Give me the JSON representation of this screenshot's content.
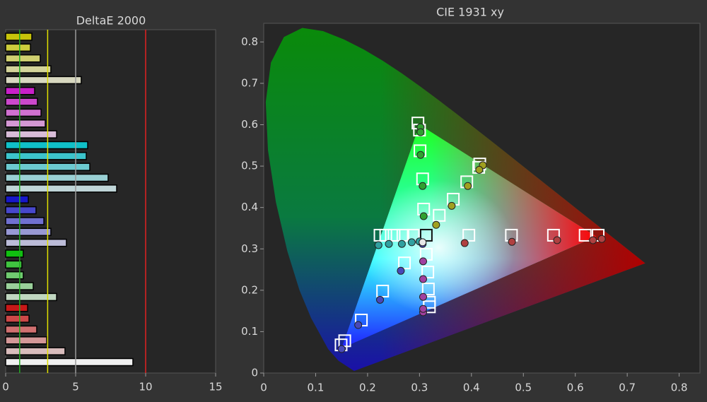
{
  "chart_data": [
    {
      "type": "hbar",
      "title": "DeltaE 2000",
      "values": [
        1.87,
        1.77,
        2.47,
        3.23,
        5.4,
        2.07,
        2.27,
        2.53,
        2.83,
        3.64,
        5.86,
        5.76,
        6.01,
        7.32,
        7.93,
        1.62,
        2.17,
        2.73,
        3.23,
        4.34,
        1.26,
        1.16,
        1.26,
        1.97,
        3.64,
        1.57,
        1.67,
        2.22,
        2.93,
        4.24,
        9.09
      ],
      "colors": [
        "#c8c40a",
        "#cccc3c",
        "#d0d070",
        "#d4d49a",
        "#d8d8c0",
        "#c820c8",
        "#cc48cc",
        "#d070d0",
        "#d498d4",
        "#d8bcd8",
        "#10c0c8",
        "#3cc4cc",
        "#6ccad0",
        "#9ad0d4",
        "#c0d6d8",
        "#1818c8",
        "#4848cc",
        "#7070d0",
        "#9898d4",
        "#bcbcd8",
        "#10c010",
        "#40c440",
        "#70ca70",
        "#9ad09a",
        "#c0d6c0",
        "#c81818",
        "#cc4848",
        "#d07070",
        "#d49898",
        "#d8bcbc",
        "#f0f0f0"
      ],
      "xlim": [
        0,
        15
      ],
      "xticks": [
        0,
        5,
        10,
        15
      ],
      "reference_lines": [
        {
          "value": 1,
          "color": "#22aa22"
        },
        {
          "value": 3,
          "color": "#e0e000"
        },
        {
          "value": 5,
          "color": "#9a9a9a"
        },
        {
          "value": 10,
          "color": "#e02020"
        }
      ]
    },
    {
      "type": "cie_scatter",
      "title": "CIE 1931 xy",
      "xlim": [
        0,
        0.84
      ],
      "ylim": [
        0,
        0.845
      ],
      "xticks": [
        0,
        0.1,
        0.2,
        0.3,
        0.4,
        0.5,
        0.6,
        0.7,
        0.8
      ],
      "yticks": [
        0,
        0.1,
        0.2,
        0.3,
        0.4,
        0.5,
        0.6,
        0.7,
        0.8
      ],
      "series": [
        {
          "color": "#b04040",
          "targets": {
            "x": [
              0.395,
              0.477,
              0.558,
              0.619,
              0.644
            ],
            "y": [
              0.333,
              0.333,
              0.333,
              0.333,
              0.333
            ]
          },
          "measured": {
            "x": [
              0.387,
              0.478,
              0.565,
              0.634,
              0.651
            ],
            "y": [
              0.314,
              0.317,
              0.321,
              0.321,
              0.324
            ]
          }
        },
        {
          "color": "#30a030",
          "targets": {
            "x": [
              0.297,
              0.3,
              0.301,
              0.306,
              0.308
            ],
            "y": [
              0.604,
              0.587,
              0.537,
              0.469,
              0.396
            ]
          },
          "measured": {
            "x": [
              0.302,
              0.302,
              0.302,
              0.306,
              0.308
            ],
            "y": [
              0.594,
              0.582,
              0.527,
              0.452,
              0.379
            ]
          }
        },
        {
          "color": "#a0a020",
          "targets": {
            "x": [
              0.416,
              0.414,
              0.391,
              0.365,
              0.338
            ],
            "y": [
              0.505,
              0.497,
              0.462,
              0.42,
              0.381
            ]
          },
          "measured": {
            "x": [
              0.422,
              0.415,
              0.393,
              0.362,
              0.332
            ],
            "y": [
              0.502,
              0.491,
              0.452,
              0.404,
              0.358
            ]
          }
        },
        {
          "color": "#30a0a0",
          "targets": {
            "x": [
              0.224,
              0.235,
              0.251,
              0.268,
              0.288
            ],
            "y": [
              0.333,
              0.333,
              0.333,
              0.333,
              0.333
            ]
          },
          "measured": {
            "x": [
              0.221,
              0.241,
              0.266,
              0.285,
              0.3
            ],
            "y": [
              0.309,
              0.312,
              0.312,
              0.316,
              0.318
            ]
          }
        },
        {
          "color": "#4848b8",
          "targets": {
            "x": [
              0.149,
              0.156,
              0.188,
              0.229,
              0.271
            ],
            "y": [
              0.068,
              0.078,
              0.128,
              0.198,
              0.266
            ]
          },
          "measured": {
            "x": [
              0.15,
              0.182,
              0.224,
              0.264,
              0.306
            ],
            "y": [
              0.058,
              0.116,
              0.177,
              0.247,
              0.312
            ]
          }
        },
        {
          "color": "#a040a0",
          "targets": {
            "x": [
              0.319,
              0.319,
              0.317,
              0.316,
              0.313
            ],
            "y": [
              0.16,
              0.171,
              0.203,
              0.244,
              0.287
            ]
          },
          "measured": {
            "x": [
              0.307,
              0.307,
              0.307,
              0.307,
              0.307
            ],
            "y": [
              0.147,
              0.155,
              0.184,
              0.227,
              0.27
            ]
          }
        },
        {
          "color": "#e8e8e8",
          "targets": {
            "x": [
              0.313
            ],
            "y": [
              0.333
            ]
          },
          "measured": {
            "x": [
              0.306
            ],
            "y": [
              0.316
            ]
          }
        }
      ]
    }
  ]
}
